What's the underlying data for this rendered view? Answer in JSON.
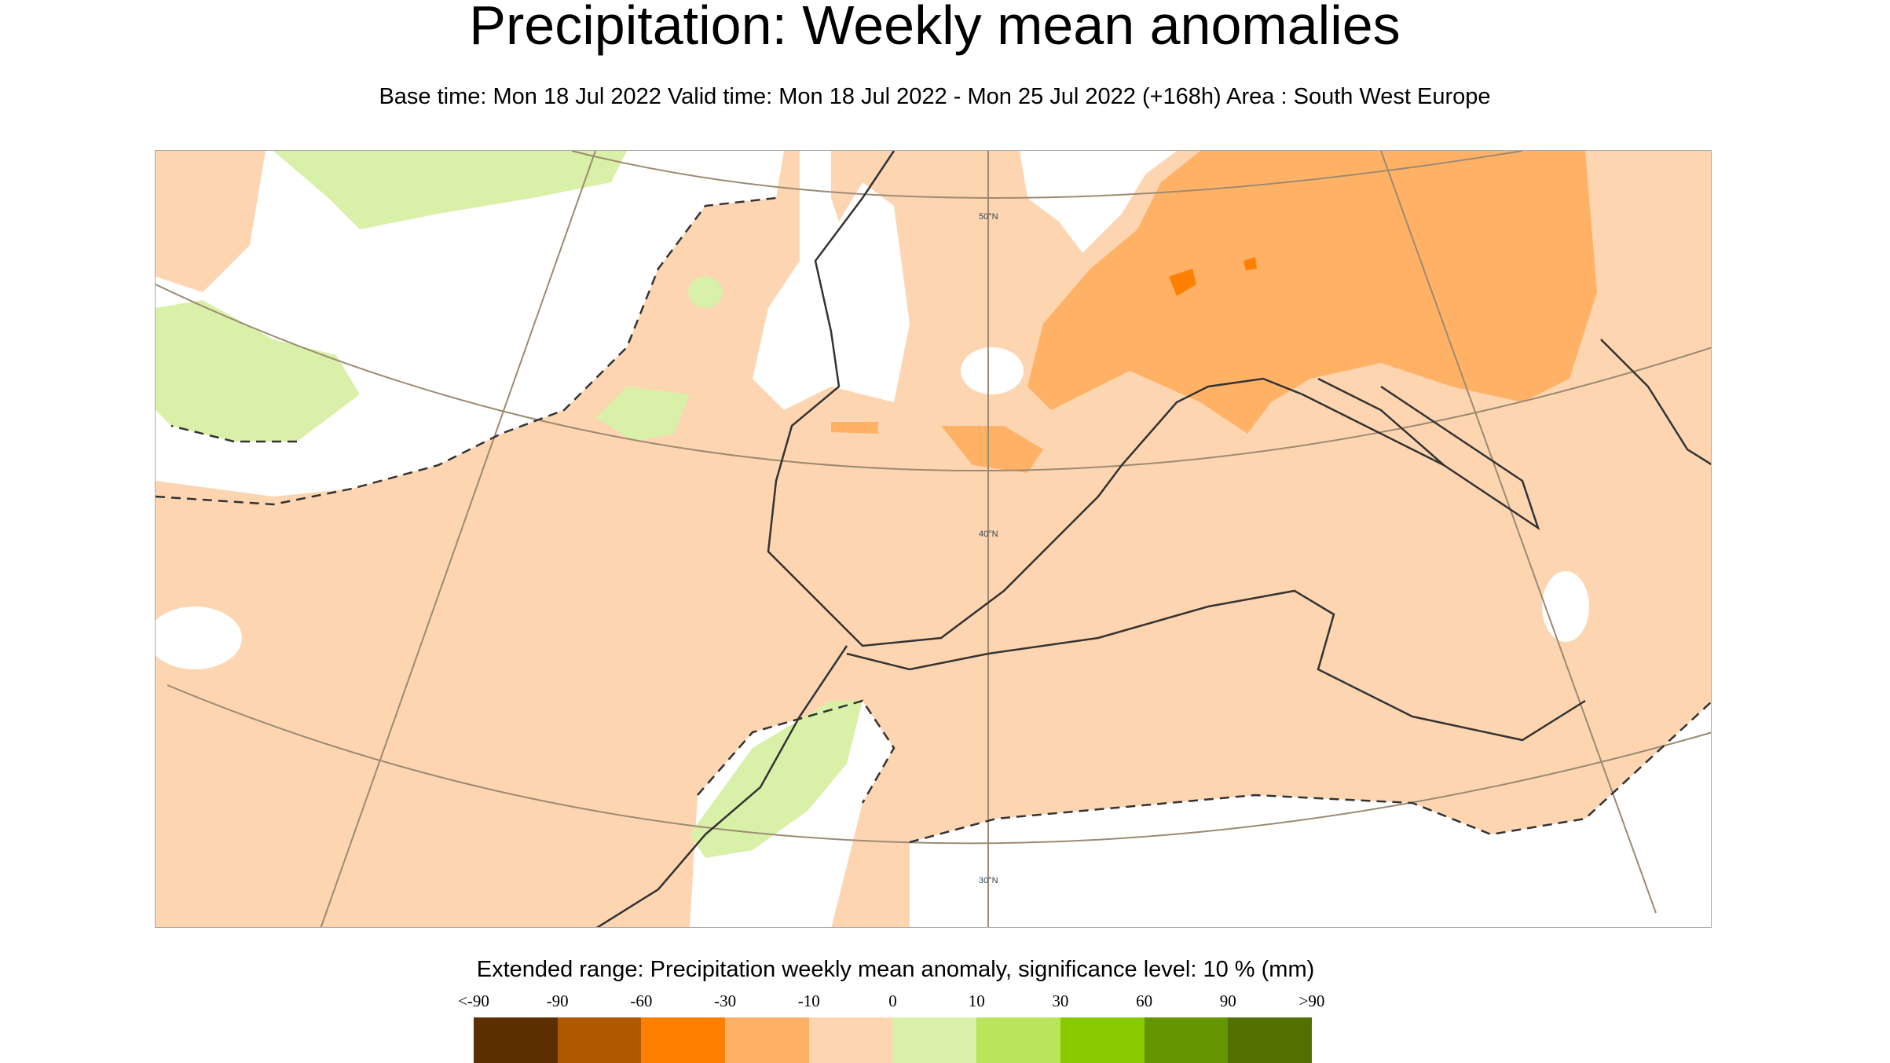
{
  "title": "Precipitation: Weekly mean anomalies",
  "subtitle": "Base time: Mon 18 Jul 2022 Valid time: Mon 18 Jul 2022 - Mon 25 Jul 2022 (+168h) Area : South West Europe",
  "map": {
    "area": "South West Europe",
    "latitude_labels": [
      "50°N",
      "40°N",
      "30°N"
    ],
    "colors": {
      "background_anomaly": "#fdd5b1",
      "dry_anomaly": "#ffb266",
      "strong_dry": "#ff8000",
      "wet_anomaly": "#d9f0a8",
      "not_significant": "#ffffff"
    }
  },
  "legend": {
    "title": "Extended range: Precipitation weekly mean anomaly, significance level: 10 % (mm)",
    "labels": [
      "<-90",
      "-90",
      "-60",
      "-30",
      "-10",
      "0",
      "10",
      "30",
      "60",
      "90",
      ">90"
    ],
    "colors": [
      "#5c2e00",
      "#b05800",
      "#ff8000",
      "#ffb266",
      "#fdd5b1",
      "#d9f0a8",
      "#b8e55a",
      "#88c900",
      "#649600",
      "#527000"
    ]
  }
}
